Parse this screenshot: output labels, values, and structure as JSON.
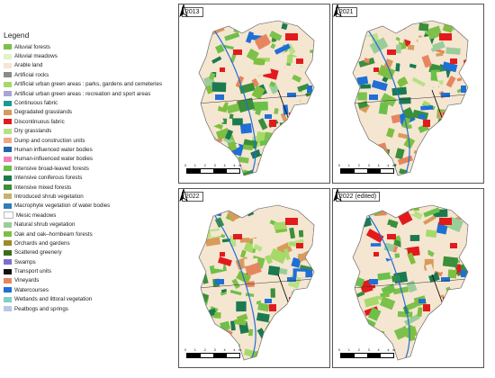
{
  "legend": {
    "title": "Legend",
    "items": [
      {
        "label": "Alluvial forests",
        "color": "#7cc14b"
      },
      {
        "label": "Alluvial meadows",
        "color": "#e1f3c7"
      },
      {
        "label": "Arable land",
        "color": "#f5e6d1"
      },
      {
        "label": "Artificial rocks",
        "color": "#8a8a8a"
      },
      {
        "label": "Artificial urban green areas : parks, gardens and cemeteries",
        "color": "#a6d96a"
      },
      {
        "label": "Artificial urban green areas : recreation and sport areas",
        "color": "#a8a4d6"
      },
      {
        "label": "Continuous fabric",
        "color": "#1a9c8d"
      },
      {
        "label": "Degradated grasslands",
        "color": "#d89b5a"
      },
      {
        "label": "Discontinuous fabric",
        "color": "#e31a1c"
      },
      {
        "label": "Dry grasslands",
        "color": "#b8e186"
      },
      {
        "label": "Dump and construction units",
        "color": "#f4a582"
      },
      {
        "label": "Human influenced water bodies",
        "color": "#2166ac"
      },
      {
        "label": "Human-influenced water bodies",
        "color": "#f082b9"
      },
      {
        "label": "Intensive broad-leaved forests",
        "color": "#6cc04a"
      },
      {
        "label": "Intensive coniferous forests",
        "color": "#1b7a4f"
      },
      {
        "label": "Intensive mixed forests",
        "color": "#3a8f3a"
      },
      {
        "label": "Introduced shrub vegetation",
        "color": "#c9b16a"
      },
      {
        "label": "Macrophyte vegetation of water bodies",
        "color": "#2c7fb8"
      },
      {
        "label": "Mesic meadows",
        "color": "#ffffff"
      },
      {
        "label": "Natural shrub vegetation",
        "color": "#9acd9a"
      },
      {
        "label": "Oak and oak–hornbeam forests",
        "color": "#7fbf3f"
      },
      {
        "label": "Orchards and gardens",
        "color": "#9e8a2a"
      },
      {
        "label": "Scattered greenery",
        "color": "#3d6b1f"
      },
      {
        "label": "Swamps",
        "color": "#7b6fd0"
      },
      {
        "label": "Transport units",
        "color": "#111111"
      },
      {
        "label": "Vineyards",
        "color": "#e6865e"
      },
      {
        "label": "Watercourses",
        "color": "#1f6fd6"
      },
      {
        "label": "Wetlands and littoral vegetation",
        "color": "#7fd0c8"
      },
      {
        "label": "Peatbogs and springs",
        "color": "#b8c7e8"
      }
    ]
  },
  "panels": [
    {
      "title": "2013"
    },
    {
      "title": "2021"
    },
    {
      "title": "2022"
    },
    {
      "title": "2022 (edited)"
    }
  ],
  "scalebar_label": "0 1 2 3 4 km"
}
